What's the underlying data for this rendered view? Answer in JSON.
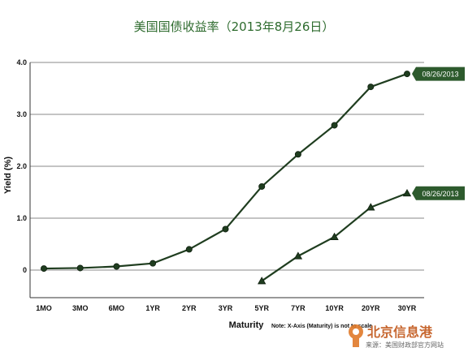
{
  "chart_data": {
    "type": "line",
    "title": "美国国债收益率（2013年8月26日）",
    "xlabel": "Maturity",
    "ylabel": "Yield (%)",
    "note": "Note: X-Axis (Maturity) is not to scale",
    "categories": [
      "1MO",
      "3MO",
      "6MO",
      "1YR",
      "2YR",
      "3YR",
      "5YR",
      "7YR",
      "10YR",
      "20YR",
      "30YR"
    ],
    "y_ticks": [
      "0",
      "1.0",
      "2.0",
      "3.0",
      "4.0"
    ],
    "ylim": [
      -0.5,
      4.0
    ],
    "grid": "horizontal",
    "series": [
      {
        "name": "08/26/2013",
        "marker": "circle",
        "values": [
          0.03,
          0.04,
          0.07,
          0.13,
          0.4,
          0.79,
          1.61,
          2.23,
          2.79,
          3.53,
          3.78
        ]
      },
      {
        "name": "08/26/2013",
        "marker": "triangle",
        "values": [
          null,
          null,
          null,
          null,
          null,
          null,
          -0.21,
          0.27,
          0.64,
          1.21,
          1.48
        ]
      }
    ]
  },
  "watermark": {
    "text": "北京信息港",
    "source": "来源：美国财政部官方网站"
  },
  "colors": {
    "line": "#1f3d1f",
    "flag": "#2d5a2d",
    "title": "#2e6b2e",
    "grid": "#888888"
  }
}
